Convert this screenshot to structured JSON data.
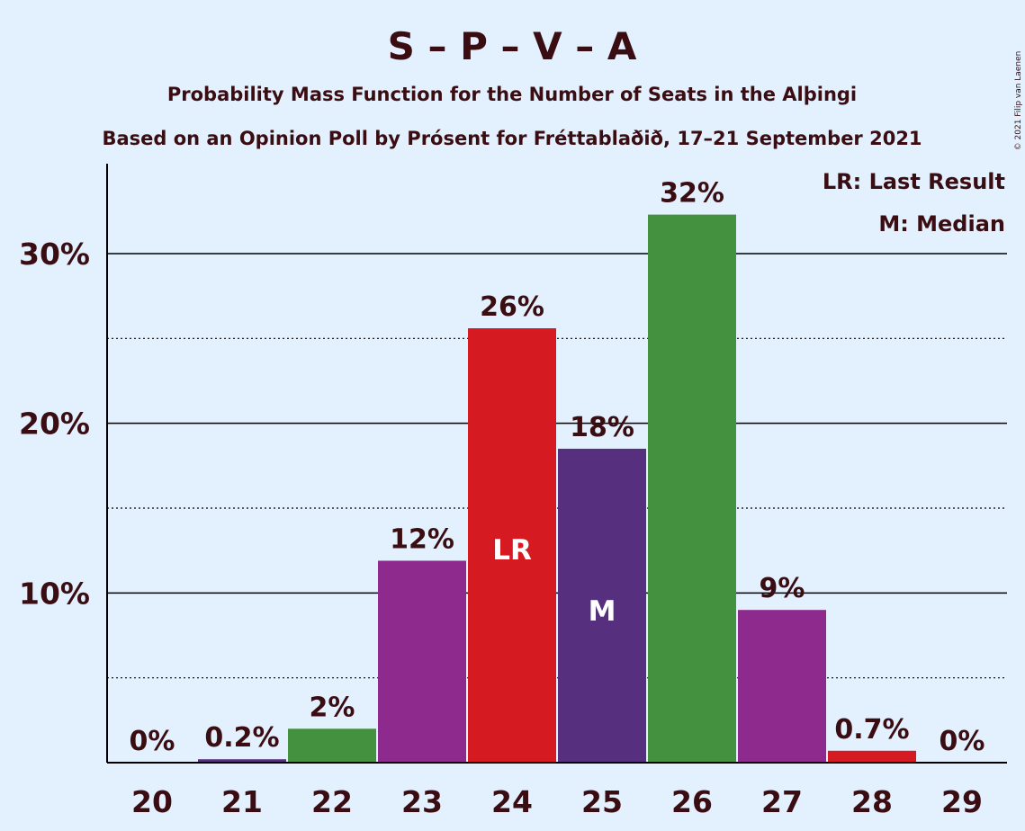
{
  "chart_data": {
    "type": "bar",
    "title": "S – P – V – A",
    "subtitle_1": "Probability Mass Function for the Number of Seats in the Alþingi",
    "subtitle_2": "Based on an Opinion Poll by Prósent for Fréttablaðið, 17–21 September 2021",
    "copyright": "© 2021 Filip van Laenen",
    "legend": {
      "lr": "LR: Last Result",
      "m": "M: Median",
      "placement": "top-right"
    },
    "categories": [
      "20",
      "21",
      "22",
      "23",
      "24",
      "25",
      "26",
      "27",
      "28",
      "29"
    ],
    "values": [
      0,
      0.2,
      2,
      11.9,
      25.6,
      18.5,
      32.3,
      9,
      0.7,
      0
    ],
    "labels": [
      "0%",
      "0.2%",
      "2%",
      "12%",
      "26%",
      "18%",
      "32%",
      "9%",
      "0.7%",
      "0%"
    ],
    "colors": [
      "#8e2a8e",
      "#56307f",
      "#44913f",
      "#8e2a8e",
      "#d61a21",
      "#56307f",
      "#44913f",
      "#8e2a8e",
      "#d61a21",
      "#44913f"
    ],
    "bar_markers": {
      "4": "LR",
      "5": "M"
    },
    "yticks": [
      10,
      20,
      30
    ],
    "ytick_labels": [
      "10%",
      "20%",
      "30%"
    ],
    "minor_ticks": [
      5,
      15,
      25
    ],
    "ylim": [
      0,
      35
    ],
    "grid": true
  }
}
